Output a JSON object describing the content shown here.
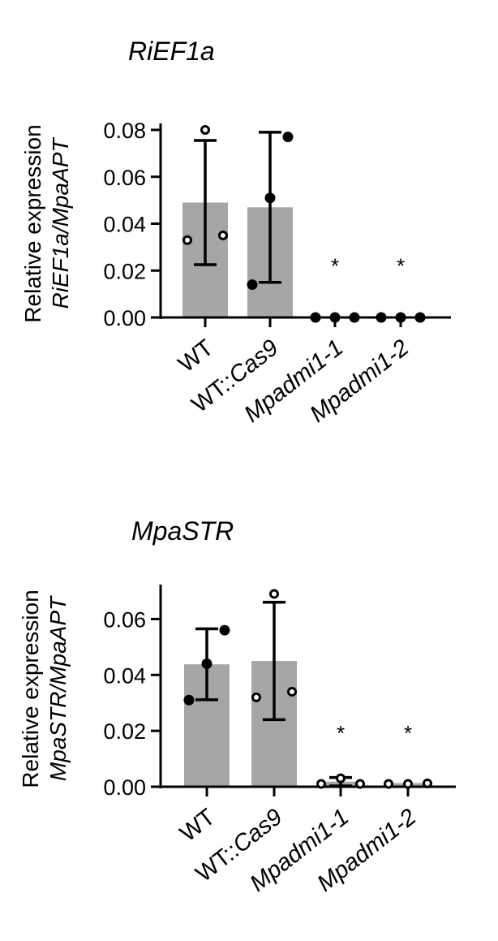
{
  "chart_data": [
    {
      "type": "bar",
      "title": "RiEF1a",
      "ylabel": "Relative expression",
      "ylabel_line2": "RiEF1a/MpaAPT",
      "ylim": [
        0,
        0.08
      ],
      "yticks": [
        "0.00",
        "0.02",
        "0.04",
        "0.06",
        "0.08"
      ],
      "categories": [
        "WT",
        "WT::Cas9",
        "Mpadmi1-1",
        "Mpadmi1-2"
      ],
      "italic_categories": [
        false,
        false,
        true,
        true
      ],
      "values": [
        0.049,
        0.047,
        0.0,
        0.0
      ],
      "error": [
        0.0265,
        0.032,
        0.0,
        0.0
      ],
      "points": [
        [
          0.033,
          0.08,
          0.035
        ],
        [
          0.014,
          0.051,
          0.077
        ],
        [
          0.0,
          0.0,
          0.0
        ],
        [
          0.0,
          0.0,
          0.0
        ]
      ],
      "point_style": [
        "open",
        "filled",
        "filled",
        "filled"
      ],
      "significance": [
        "",
        "",
        "*",
        "*"
      ],
      "bar_color": "#a6a6a8"
    },
    {
      "type": "bar",
      "title": "MpaSTR",
      "ylabel": "Relative expression",
      "ylabel_line2": "MpaSTR/MpaAPT",
      "ylim": [
        0,
        0.07
      ],
      "yticks": [
        "0.00",
        "0.02",
        "0.04",
        "0.06"
      ],
      "categories": [
        "WT",
        "WT::Cas9",
        "Mpadmi1-1",
        "Mpadmi1-2"
      ],
      "italic_categories": [
        false,
        false,
        true,
        true
      ],
      "values": [
        0.0438,
        0.045,
        0.0018,
        0.0013
      ],
      "error": [
        0.0127,
        0.021,
        0.0015,
        0.0
      ],
      "points": [
        [
          0.031,
          0.044,
          0.056
        ],
        [
          0.032,
          0.069,
          0.034
        ],
        [
          0.001,
          0.003,
          0.001
        ],
        [
          0.001,
          0.001,
          0.0012
        ]
      ],
      "point_style": [
        "filled",
        "open",
        "open",
        "open"
      ],
      "significance": [
        "",
        "",
        "*",
        "*"
      ],
      "bar_color": "#a6a6a8"
    }
  ]
}
